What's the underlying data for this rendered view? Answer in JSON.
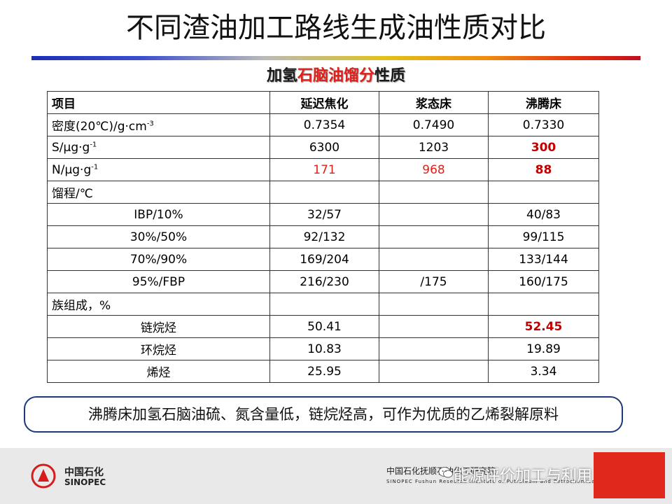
{
  "title": "不同渣油加工路线生成油性质对比",
  "subtitle": {
    "part1": "加氢",
    "part2": "石脑油馏分",
    "part3": "性质"
  },
  "table": {
    "header": [
      "项目",
      "延迟焦化",
      "浆态床",
      "沸腾床"
    ],
    "rows": [
      {
        "label": "密度(20℃)/g·cm",
        "label_sup": "-3",
        "c1": "0.7354",
        "c2": "0.7490",
        "c3": "0.7330"
      },
      {
        "label": "S/μg·g",
        "label_sup": "-1",
        "c1": "6300",
        "c2": "1203",
        "c3": "300"
      },
      {
        "label": "N/μg·g",
        "label_sup": "-1",
        "c1": "171",
        "c2": "968",
        "c3": "88"
      },
      {
        "label": "馏程/℃",
        "c1": "",
        "c2": "",
        "c3": ""
      },
      {
        "label": "IBP/10%",
        "c1": "32/57",
        "c2": "",
        "c3": "40/83"
      },
      {
        "label": "30%/50%",
        "c1": "92/132",
        "c2": "",
        "c3": "99/115"
      },
      {
        "label": "70%/90%",
        "c1": "169/204",
        "c2": "",
        "c3": "133/144"
      },
      {
        "label": "95%/FBP",
        "c1": "216/230",
        "c2": "/175",
        "c3": "160/175"
      },
      {
        "label": "族组成，%",
        "c1": "",
        "c2": "",
        "c3": ""
      },
      {
        "label": "链烷烃",
        "c1": "50.41",
        "c2": "",
        "c3": "52.45"
      },
      {
        "label": "环烷烃",
        "c1": "10.83",
        "c2": "",
        "c3": "19.89"
      },
      {
        "label": "烯烃",
        "c1": "25.95",
        "c2": "",
        "c3": "3.34"
      }
    ]
  },
  "callout": "沸腾床加氢石脑油硫、氮含量低，链烷烃高，可作为优质的乙烯裂解原料",
  "footer": {
    "logo_cn": "中国石化",
    "logo_en": "SINOPEC",
    "institute_cn": "中国石化抚顺石油化工研究院",
    "institute_en": "SINOPEC Fushun Research Institute of Petroleum and Petrochemicals",
    "watermark": "能源评价加工与利用"
  },
  "colors": {
    "highlight_red": "#e0201a",
    "highlight_darkred": "#c00000",
    "callout_border": "#1a3a7a",
    "footer_red": "#e0281c"
  }
}
